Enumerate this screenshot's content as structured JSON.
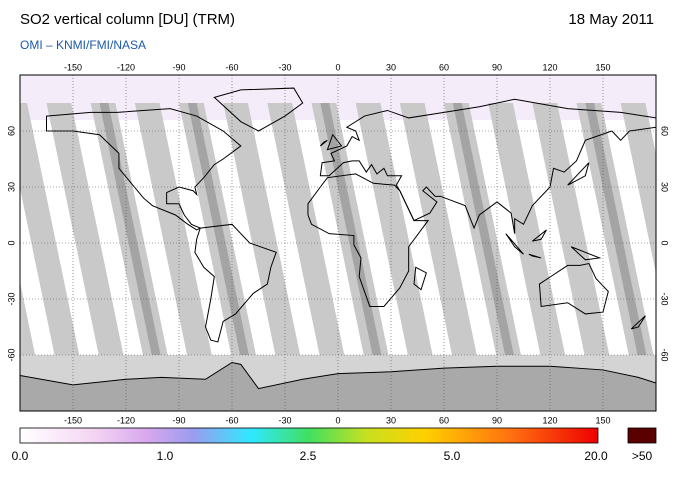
{
  "map": {
    "title": "SO2 vertical column [DU] (TRM)",
    "date": "18 May 2011",
    "credit": "OMI  –  KNMI/FMI/NASA",
    "lon_ticks": [
      -150,
      -120,
      -90,
      -60,
      -30,
      0,
      30,
      60,
      90,
      120,
      150
    ],
    "lat_ticks": [
      -60,
      -30,
      0,
      30,
      60
    ],
    "colorbar": {
      "labels": [
        "0.0",
        "1.0",
        "2.5",
        "5.0",
        "20.0"
      ],
      "overflow_label": ">50"
    }
  }
}
